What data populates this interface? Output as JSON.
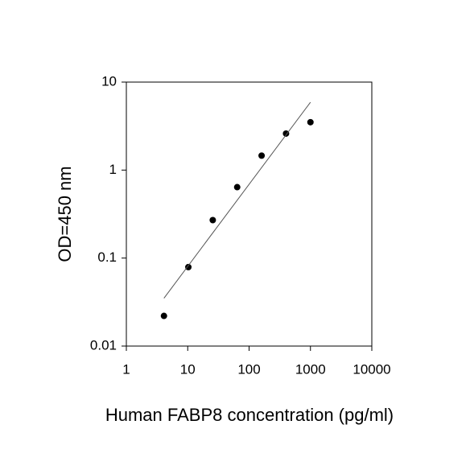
{
  "chart_data": {
    "type": "scatter",
    "x_label": "Human FABP8 concentration (pg/ml)",
    "y_label": "OD=450 nm",
    "xscale": "log",
    "yscale": "log",
    "xlim": [
      1,
      10000
    ],
    "xticks": [
      1,
      10,
      100,
      1000,
      10000
    ],
    "ylim": [
      0.01,
      10
    ],
    "yticks": [
      0.01,
      0.1,
      1,
      10
    ],
    "series": [
      {
        "type": "scatter",
        "color": "#000000",
        "x": [
          4.1,
          10.24,
          25.6,
          64,
          160,
          400,
          1000
        ],
        "values": [
          0.022,
          0.079,
          0.27,
          0.64,
          1.46,
          2.6,
          3.5
        ]
      },
      {
        "type": "line",
        "color": "#555555",
        "x": [
          4.1,
          1000
        ],
        "values": [
          0.035,
          5.9
        ]
      }
    ]
  }
}
